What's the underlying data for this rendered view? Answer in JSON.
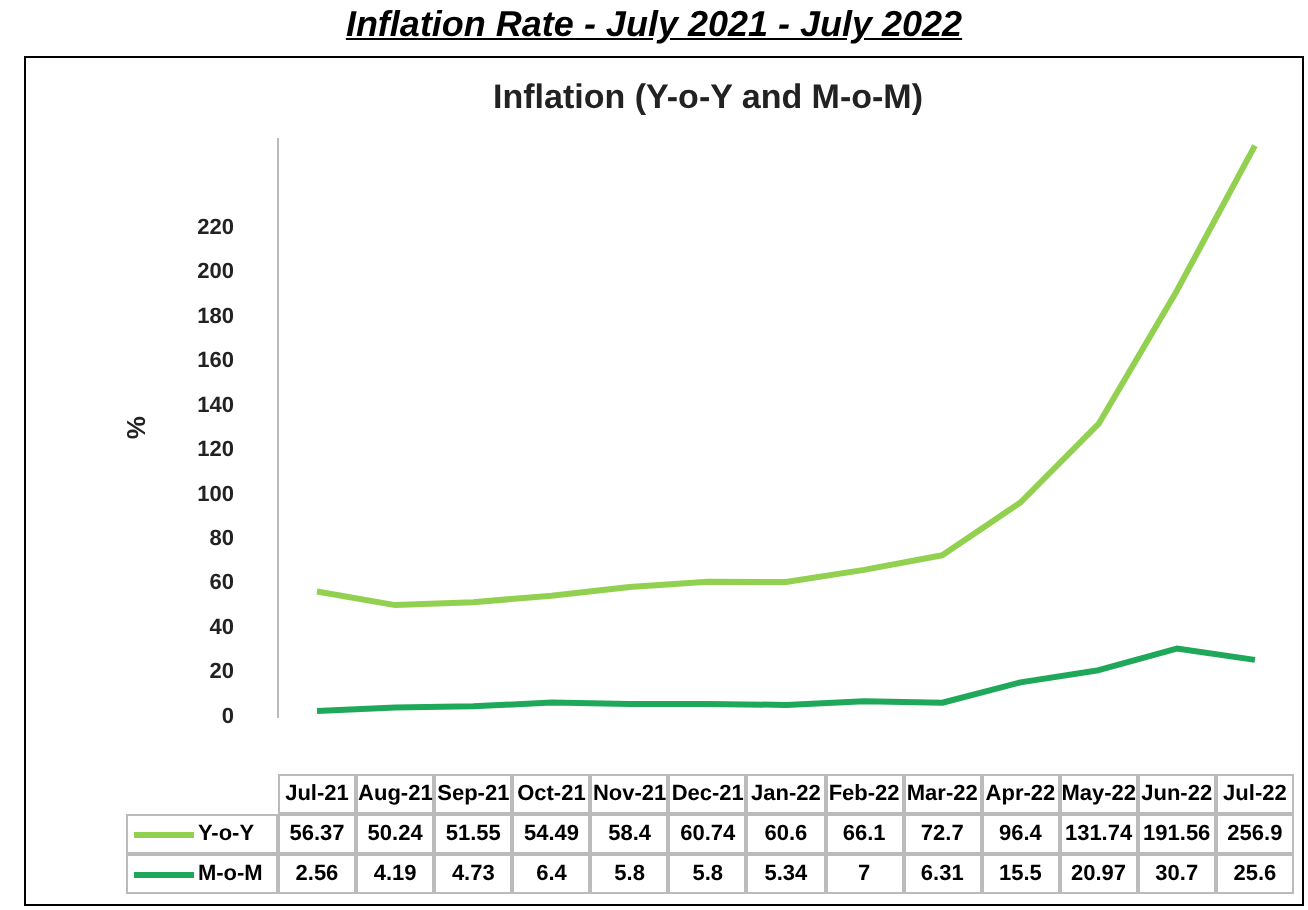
{
  "chart_data": {
    "type": "line",
    "title": "Inflation (Y-o-Y and M-o-M)",
    "ylabel": "%",
    "annotations": [
      "Inflation Rate - July 2021 - July 2022"
    ],
    "categories": [
      "Jul-21",
      "Aug-21",
      "Sep-21",
      "Oct-21",
      "Nov-21",
      "Dec-21",
      "Jan-22",
      "Feb-22",
      "Mar-22",
      "Apr-22",
      "May-22",
      "Jun-22",
      "Jul-22"
    ],
    "series": [
      {
        "name": "Y-o-Y",
        "color": "#92d050",
        "values": [
          56.37,
          50.24,
          51.55,
          54.49,
          58.4,
          60.74,
          60.6,
          66.1,
          72.7,
          96.4,
          131.74,
          191.56,
          256.9
        ]
      },
      {
        "name": "M-o-M",
        "color": "#1fa85a",
        "values": [
          2.56,
          4.19,
          4.73,
          6.4,
          5.8,
          5.8,
          5.34,
          7,
          6.31,
          15.5,
          20.97,
          30.7,
          25.6
        ]
      }
    ],
    "ylim": [
      0,
      260
    ],
    "yticks": [
      0,
      20,
      40,
      60,
      80,
      100,
      120,
      140,
      160,
      180,
      200,
      220
    ],
    "grid": false,
    "legend": "bottom",
    "marker": "none",
    "line_style": "solid",
    "data_labels": true
  }
}
